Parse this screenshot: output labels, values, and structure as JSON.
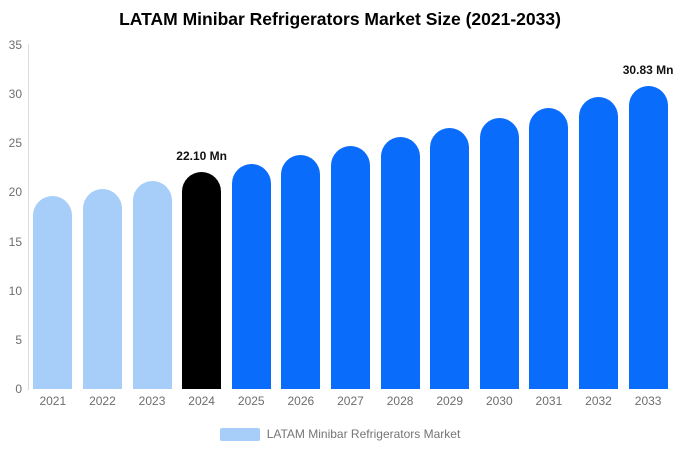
{
  "title": "LATAM Minibar Refrigerators Market Size (2021-2033)",
  "legend": {
    "label": "LATAM Minibar Refrigerators Market",
    "swatch_color": "#a6cef8"
  },
  "colors": {
    "historical_bars": "#a6cef8",
    "base_year_bar": "#000000",
    "forecast_bars": "#0a6cfa",
    "axis_line": "#dcdcdc",
    "tick_label": "#6e6e6e",
    "annotation_text": "#111111",
    "background": "#ffffff"
  },
  "chart_data": {
    "type": "bar",
    "title": "LATAM Minibar Refrigerators Market Size (2021-2033)",
    "unit": "Mn",
    "categories": [
      "2021",
      "2022",
      "2023",
      "2024",
      "2025",
      "2026",
      "2027",
      "2028",
      "2029",
      "2030",
      "2031",
      "2032",
      "2033"
    ],
    "values": [
      19.6,
      20.4,
      21.2,
      22.1,
      22.9,
      23.8,
      24.7,
      25.6,
      26.6,
      27.6,
      28.6,
      29.7,
      30.83
    ],
    "bar_colors": [
      "#a6cef8",
      "#a6cef8",
      "#a6cef8",
      "#000000",
      "#0a6cfa",
      "#0a6cfa",
      "#0a6cfa",
      "#0a6cfa",
      "#0a6cfa",
      "#0a6cfa",
      "#0a6cfa",
      "#0a6cfa",
      "#0a6cfa"
    ],
    "annotations": [
      {
        "category": "2024",
        "text": "22.10 Mn"
      },
      {
        "category": "2033",
        "text": "30.83 Mn"
      }
    ],
    "xlabel": "",
    "ylabel": "",
    "ylim": [
      0,
      35
    ],
    "yticks": [
      0,
      5,
      10,
      15,
      20,
      25,
      30,
      35
    ],
    "grid": false,
    "legend_position": "bottom",
    "legend_entries": [
      "LATAM Minibar Refrigerators Market"
    ]
  }
}
